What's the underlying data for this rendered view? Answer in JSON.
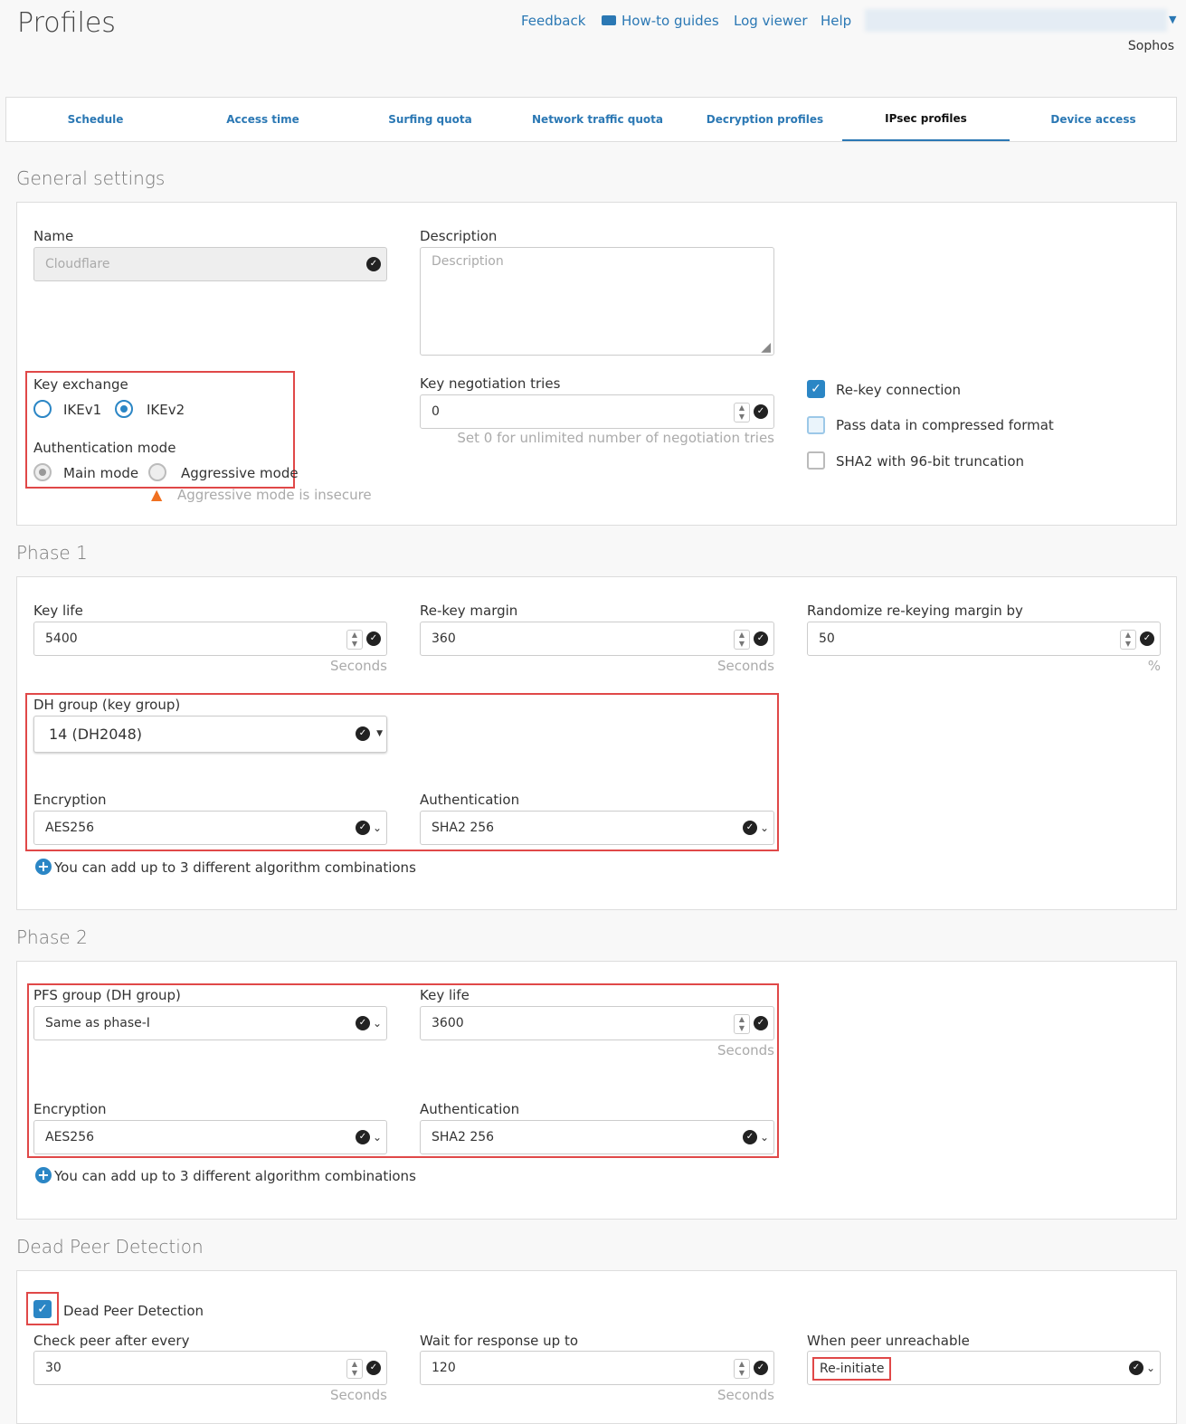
{
  "header": {
    "title": "Profiles",
    "links": [
      "Feedback",
      "How-to guides",
      "Log viewer",
      "Help"
    ],
    "user": "Sophos"
  },
  "tabs": [
    "Schedule",
    "Access time",
    "Surfing quota",
    "Network traffic quota",
    "Decryption profiles",
    "IPsec profiles",
    "Device access"
  ],
  "active_tab": "IPsec profiles",
  "general": {
    "title": "General settings",
    "name_label": "Name",
    "name_value": "Cloudflare",
    "desc_label": "Description",
    "desc_placeholder": "Description",
    "key_exchange_label": "Key exchange",
    "ikev1": "IKEv1",
    "ikev2": "IKEv2",
    "key_exchange_selected": "IKEv2",
    "auth_mode_label": "Authentication mode",
    "main_mode": "Main mode",
    "aggressive_mode": "Aggressive mode",
    "auth_mode_selected": "Main mode",
    "warning": "Aggressive mode is insecure",
    "tries_label": "Key negotiation tries",
    "tries_value": "0",
    "tries_hint": "Set 0 for unlimited number of negotiation tries",
    "rekey": "Re-key connection",
    "rekey_checked": true,
    "compress": "Pass data in compressed format",
    "compress_checked": false,
    "sha2": "SHA2 with 96-bit truncation",
    "sha2_checked": false
  },
  "phase1": {
    "title": "Phase 1",
    "key_life_label": "Key life",
    "key_life": "5400",
    "rekey_margin_label": "Re-key margin",
    "rekey_margin": "360",
    "random_label": "Randomize re-keying margin by",
    "random": "50",
    "seconds": "Seconds",
    "percent": "%",
    "dh_label": "DH group (key group)",
    "dh_value": "14 (DH2048)",
    "enc_label": "Encryption",
    "enc_value": "AES256",
    "auth_label": "Authentication",
    "auth_value": "SHA2 256",
    "add": "You can add up to 3 different algorithm combinations"
  },
  "phase2": {
    "title": "Phase 2",
    "pfs_label": "PFS group (DH group)",
    "pfs_value": "Same as phase-I",
    "key_life_label": "Key life",
    "key_life": "3600",
    "seconds": "Seconds",
    "enc_label": "Encryption",
    "enc_value": "AES256",
    "auth_label": "Authentication",
    "auth_value": "SHA2 256",
    "add": "You can add up to 3 different algorithm combinations"
  },
  "dpd": {
    "title": "Dead Peer Detection",
    "enable_label": "Dead Peer Detection",
    "enabled": true,
    "check_label": "Check peer after every",
    "check_value": "30",
    "wait_label": "Wait for response up to",
    "wait_value": "120",
    "unreach_label": "When peer unreachable",
    "unreach_value": "Re-initiate",
    "seconds": "Seconds"
  },
  "colors": {
    "accent": "#2b78b4",
    "highlight": "#e04848",
    "warning": "#f07020"
  }
}
